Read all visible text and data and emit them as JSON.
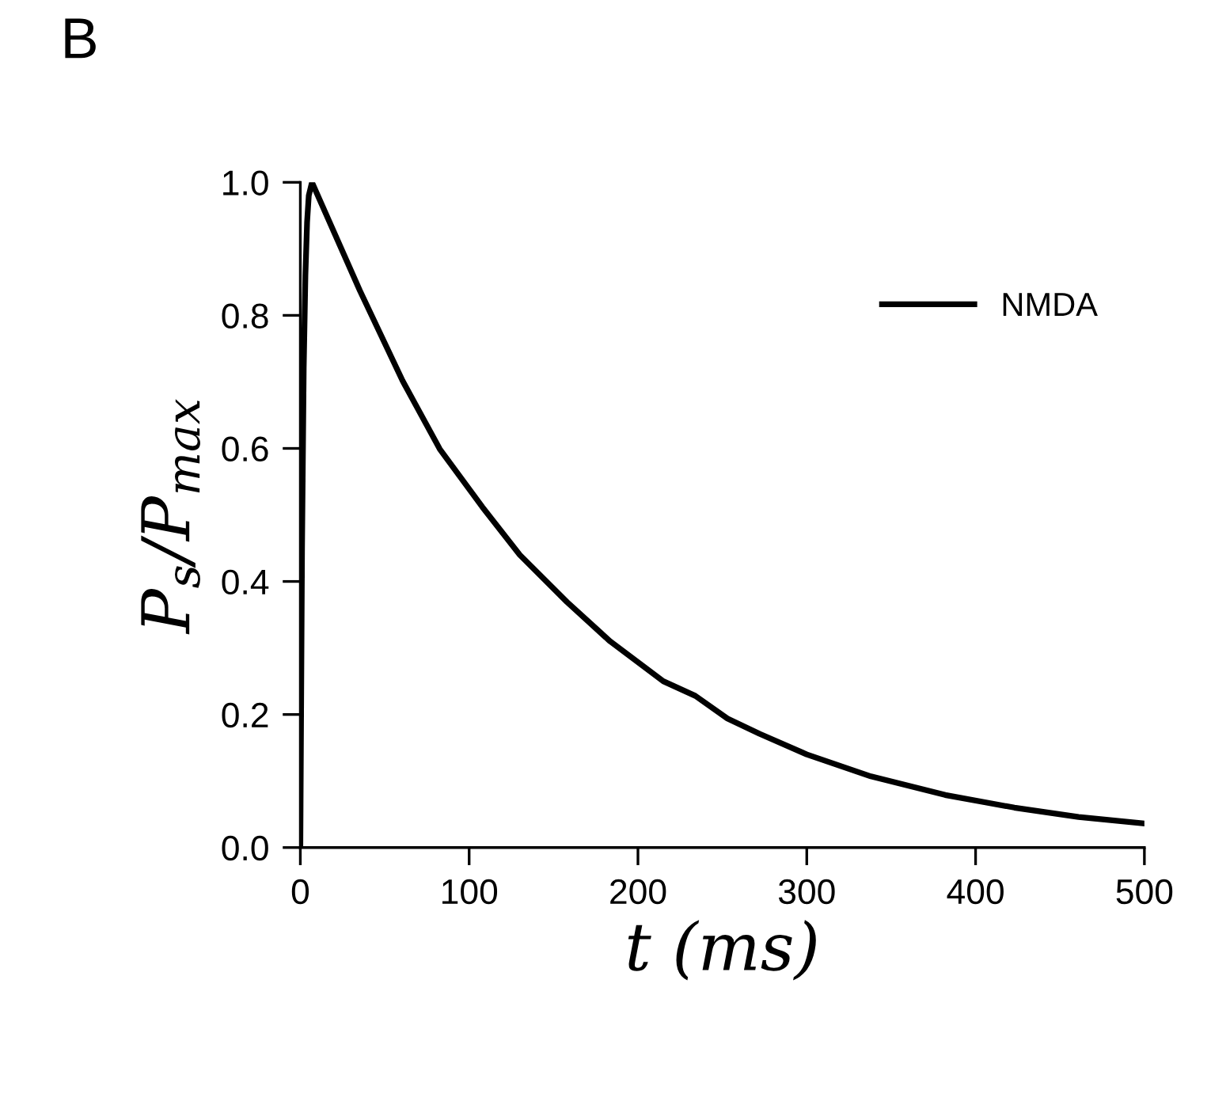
{
  "chart_data": {
    "type": "line",
    "title": "B",
    "xlabel": "t (ms)",
    "ylabel": "P$_{s}$/P$_{max}$",
    "x": [
      0,
      1,
      2,
      3,
      4,
      5,
      6.9,
      35.3,
      60.5,
      82.6,
      107.8,
      130,
      158,
      183.5,
      215,
      234,
      253,
      272,
      300,
      338,
      382,
      423,
      461,
      500
    ],
    "series": [
      {
        "name": "NMDA",
        "color": "#000000",
        "values": [
          0,
          0.45,
          0.72,
          0.86,
          0.94,
          0.98,
          1.0,
          0.837,
          0.702,
          0.599,
          0.512,
          0.44,
          0.369,
          0.31,
          0.25,
          0.228,
          0.194,
          0.171,
          0.14,
          0.107,
          0.079,
          0.06,
          0.046,
          0.036
        ]
      }
    ],
    "xlim": [
      0,
      500
    ],
    "ylim": [
      0,
      1.0
    ],
    "xticks": [
      0,
      100,
      200,
      300,
      400,
      500
    ],
    "yticks": [
      {
        "value": 0,
        "label": "0.0"
      },
      {
        "value": 0.2,
        "label": "0.2"
      },
      {
        "value": 0.4,
        "label": "0.4"
      },
      {
        "value": 0.6,
        "label": "0.6"
      },
      {
        "value": 0.8,
        "label": "0.8"
      },
      {
        "value": 1.0,
        "label": "1.0"
      }
    ],
    "grid": false,
    "legend": "top right",
    "marker": "none",
    "line_style": "solid"
  }
}
